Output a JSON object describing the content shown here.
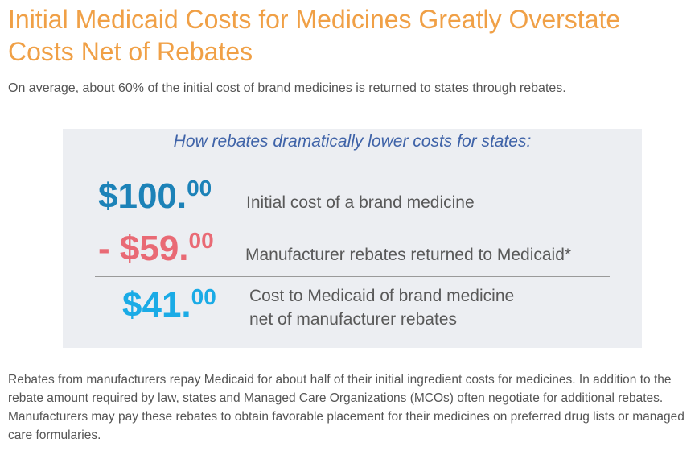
{
  "header": {
    "title": "Initial Medicaid Costs for Medicines Greatly Overstate Costs Net of Rebates",
    "subtitle": "On average, about 60% of the initial cost of brand medicines is returned to states through rebates."
  },
  "panel": {
    "heading": "How rebates dramatically lower costs for states:",
    "rows": [
      {
        "amount_main": "$100.",
        "amount_cents": "00",
        "description": "Initial cost of a brand medicine"
      },
      {
        "amount_main": "- $59.",
        "amount_cents": "00",
        "description": "Manufacturer rebates returned to Medicaid*"
      },
      {
        "amount_main": "$41.",
        "amount_cents": "00",
        "description_line1": "Cost to Medicaid of brand medicine",
        "description_line2": "net of manufacturer rebates"
      }
    ]
  },
  "footer": {
    "paragraph": "Rebates from manufacturers repay Medicaid for about half of their initial ingredient costs for medicines. In addition to the rebate amount required by law, states and Managed Care Organizations (MCOs) often negotiate for additional rebates. Manufacturers may pay these rebates to obtain favorable placement for their medicines on preferred drug lists or managed care formularies."
  },
  "colors": {
    "title": "#f0a046",
    "heading": "#3f63a8",
    "initial_amount": "#1c82b8",
    "rebate_amount": "#e96a75",
    "net_amount": "#1aabe6",
    "panel_background": "#eceef2"
  }
}
